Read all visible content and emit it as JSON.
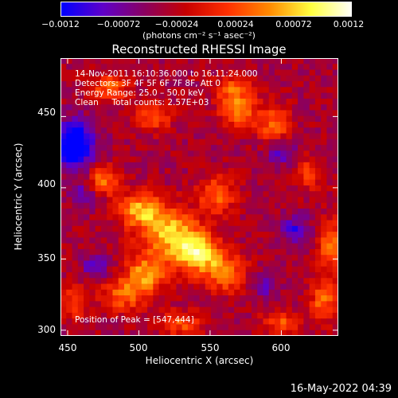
{
  "colorbar": {
    "ticks": [
      "−0.0012",
      "−0.00072",
      "−0.00024",
      "0.00024",
      "0.00072",
      "0.0012"
    ],
    "units": "(photons cm⁻² s⁻¹ asec⁻²)",
    "colors": [
      "#0000ff",
      "#5f00c8",
      "#8a0060",
      "#c80000",
      "#ff3000",
      "#ff8a00",
      "#ffff40",
      "#ffffff"
    ]
  },
  "overlay": {
    "time_range": "14-Nov-2011 16:10:36.000 to 16:11:24.000",
    "detectors": "Detectors: 3F 4F 5F 6F 7F 8F, Att 0",
    "energy": "Energy Range: 25.0 – 50.0 keV",
    "method": "Clean     Total counts: 2.57E+03",
    "peak": "Position of Peak = [547,444]"
  },
  "timestamp": "16-May-2022 04:39",
  "chart_data": {
    "type": "heatmap",
    "title": "Reconstructed RHESSI Image",
    "xlabel": "Heliocentric X (arcsec)",
    "ylabel": "Heliocentric Y (arcsec)",
    "xlim": [
      445,
      640
    ],
    "ylim": [
      296,
      491
    ],
    "xticks": [
      450,
      500,
      550,
      600
    ],
    "yticks": [
      300,
      350,
      400,
      450
    ],
    "clim": [
      -0.0012,
      0.0012
    ],
    "colorscale": "rhessi",
    "peak": [
      547,
      444
    ],
    "sources": [
      {
        "x": 540,
        "y": 355,
        "intensity": 0.0012,
        "sx": 12,
        "sy": 10
      },
      {
        "x": 520,
        "y": 370,
        "intensity": 0.001,
        "sx": 14,
        "sy": 12
      },
      {
        "x": 500,
        "y": 385,
        "intensity": 0.0009,
        "sx": 10,
        "sy": 8
      },
      {
        "x": 475,
        "y": 405,
        "intensity": 0.0008,
        "sx": 8,
        "sy": 7
      },
      {
        "x": 505,
        "y": 340,
        "intensity": 0.0009,
        "sx": 10,
        "sy": 9
      },
      {
        "x": 490,
        "y": 325,
        "intensity": 0.0007,
        "sx": 12,
        "sy": 8
      },
      {
        "x": 560,
        "y": 340,
        "intensity": 0.0008,
        "sx": 10,
        "sy": 9
      },
      {
        "x": 555,
        "y": 395,
        "intensity": 0.0007,
        "sx": 9,
        "sy": 9
      },
      {
        "x": 570,
        "y": 455,
        "intensity": 0.0008,
        "sx": 9,
        "sy": 9
      },
      {
        "x": 595,
        "y": 445,
        "intensity": 0.0007,
        "sx": 8,
        "sy": 9
      },
      {
        "x": 510,
        "y": 450,
        "intensity": 0.0006,
        "sx": 9,
        "sy": 7
      },
      {
        "x": 480,
        "y": 470,
        "intensity": 0.0007,
        "sx": 9,
        "sy": 7
      },
      {
        "x": 635,
        "y": 360,
        "intensity": 0.0008,
        "sx": 6,
        "sy": 12
      },
      {
        "x": 630,
        "y": 320,
        "intensity": 0.0007,
        "sx": 7,
        "sy": 10
      },
      {
        "x": 600,
        "y": 305,
        "intensity": 0.0006,
        "sx": 9,
        "sy": 6
      },
      {
        "x": 530,
        "y": 305,
        "intensity": 0.0006,
        "sx": 11,
        "sy": 6
      },
      {
        "x": 455,
        "y": 320,
        "intensity": 0.0006,
        "sx": 6,
        "sy": 8
      },
      {
        "x": 565,
        "y": 470,
        "intensity": 0.0006,
        "sx": 8,
        "sy": 6
      },
      {
        "x": 620,
        "y": 410,
        "intensity": 0.0005,
        "sx": 8,
        "sy": 8
      },
      {
        "x": 455,
        "y": 430,
        "intensity": -0.0012,
        "sx": 10,
        "sy": 12
      },
      {
        "x": 462,
        "y": 395,
        "intensity": -0.0005,
        "sx": 7,
        "sy": 6
      },
      {
        "x": 610,
        "y": 370,
        "intensity": -0.0006,
        "sx": 7,
        "sy": 7
      },
      {
        "x": 588,
        "y": 330,
        "intensity": -0.0004,
        "sx": 6,
        "sy": 6
      },
      {
        "x": 600,
        "y": 425,
        "intensity": -0.0005,
        "sx": 7,
        "sy": 6
      },
      {
        "x": 470,
        "y": 345,
        "intensity": -0.0006,
        "sx": 6,
        "sy": 6
      }
    ]
  }
}
